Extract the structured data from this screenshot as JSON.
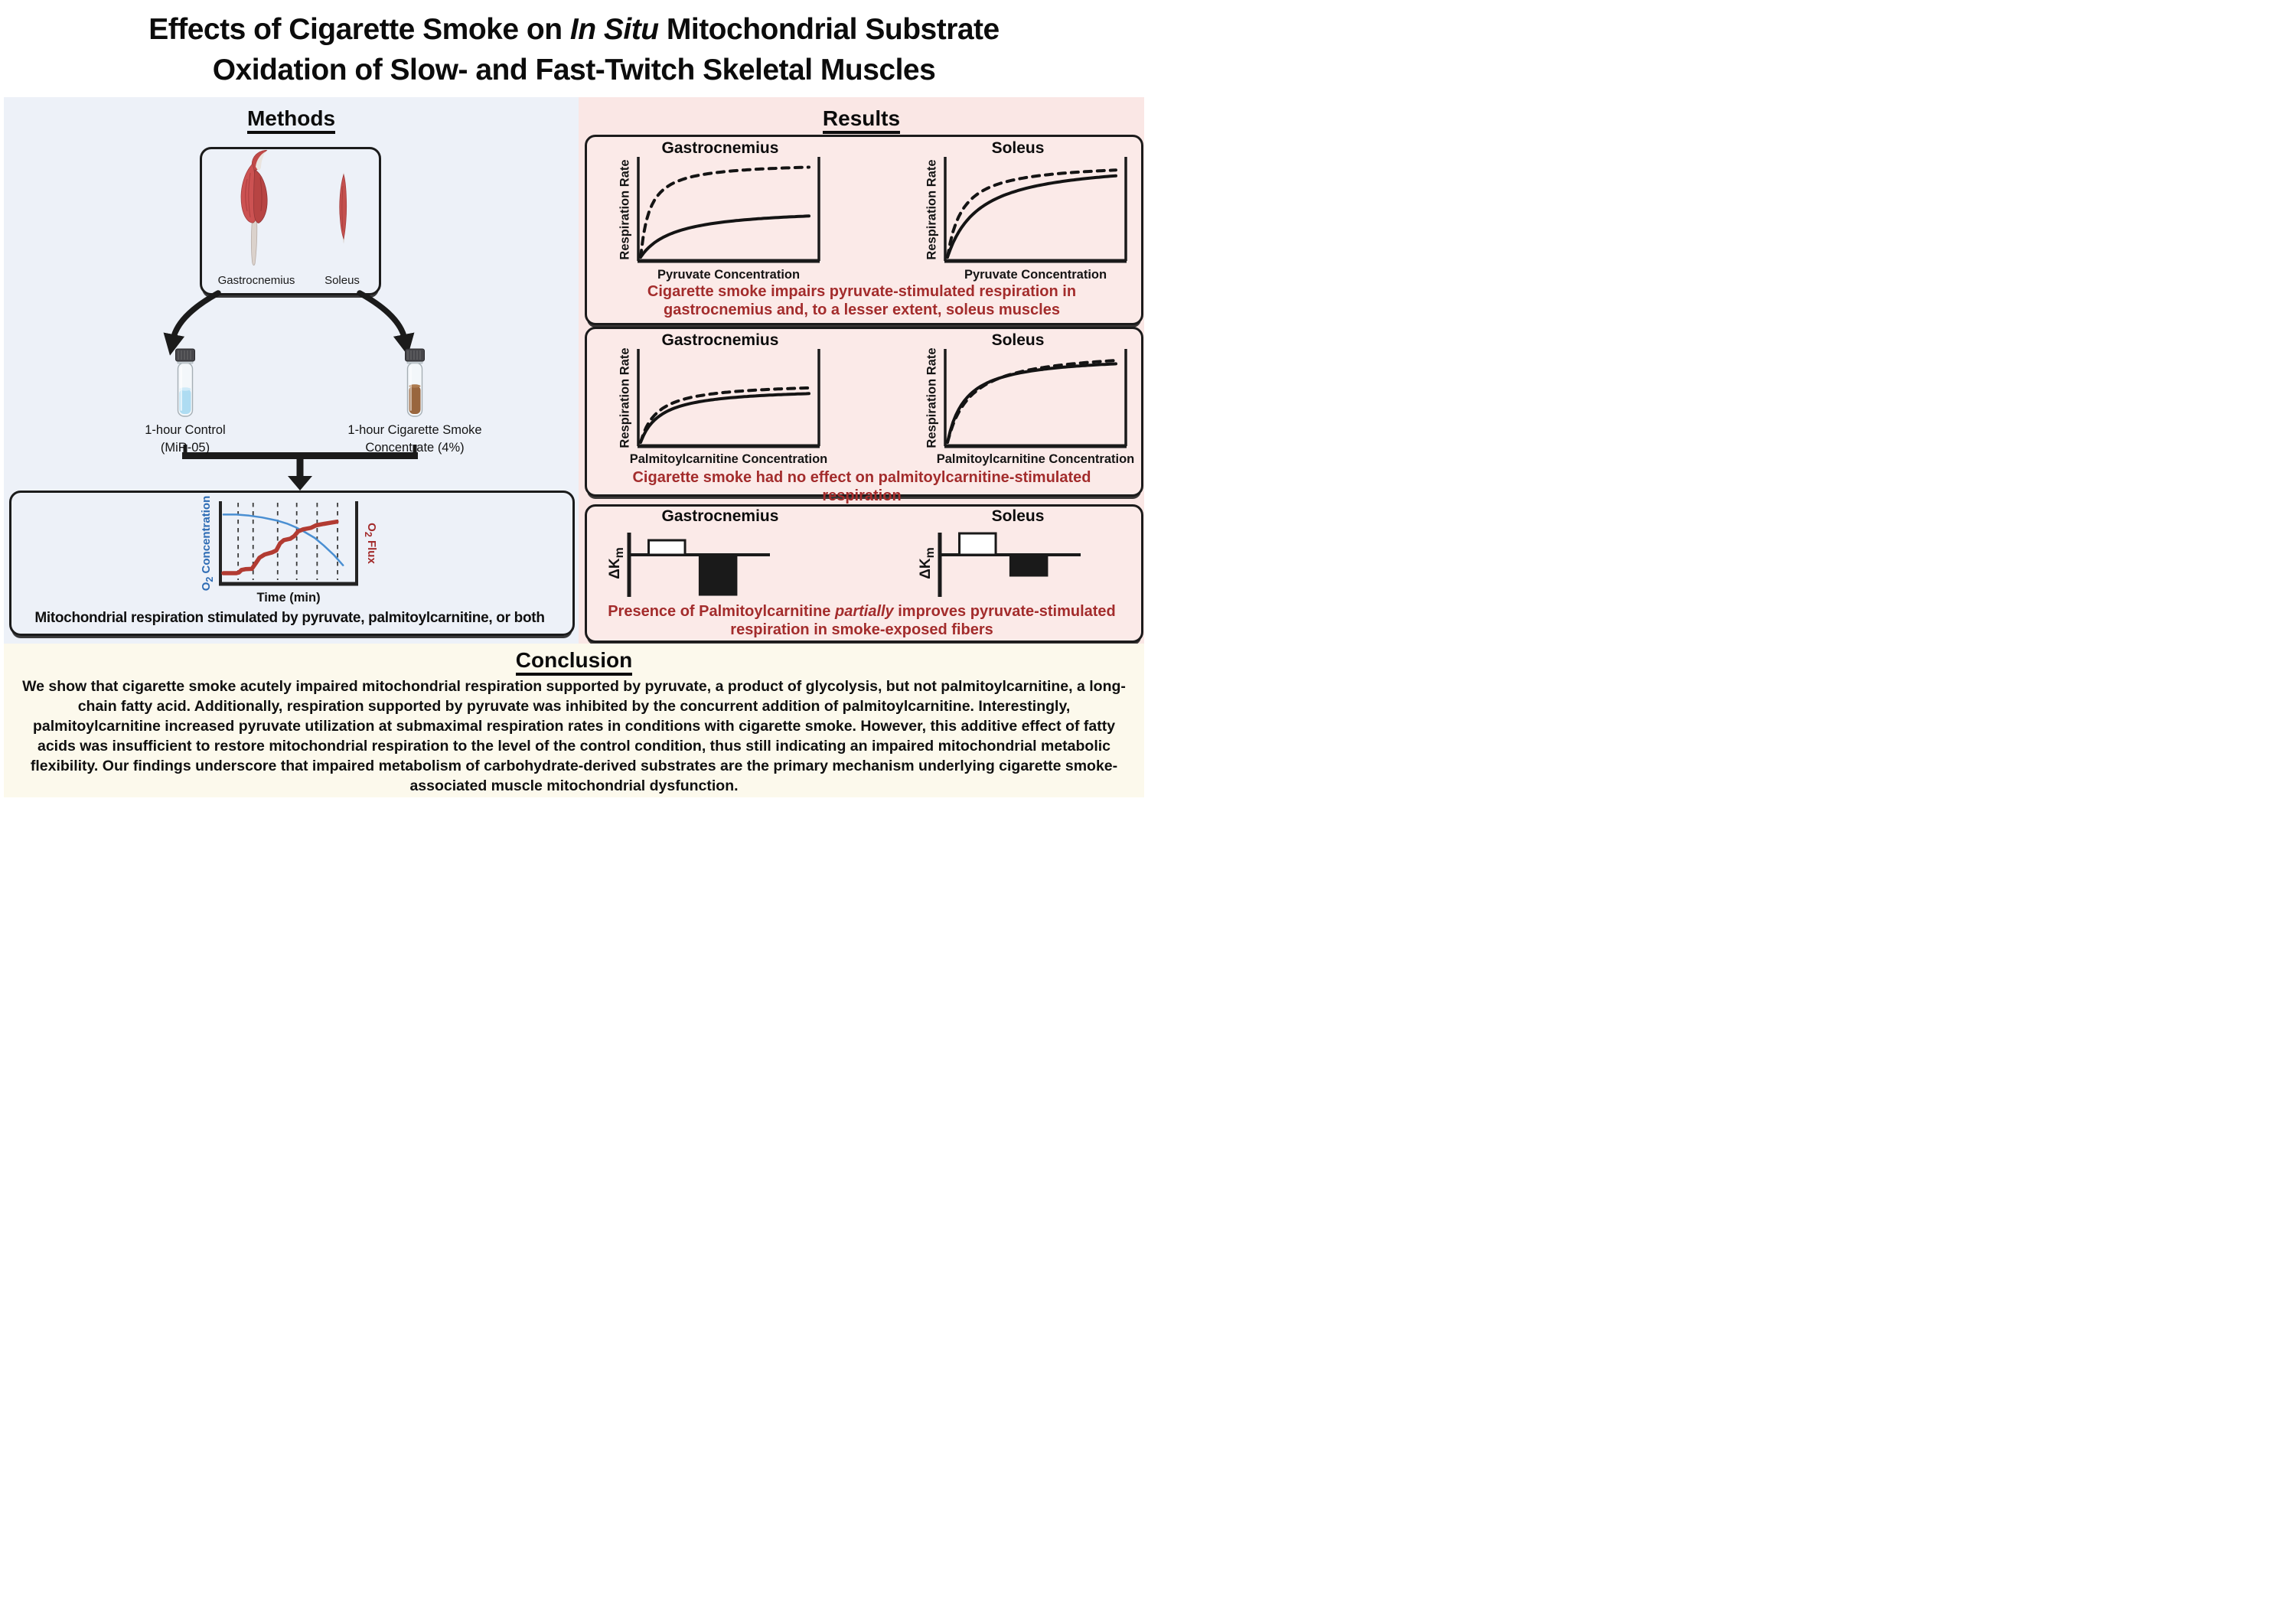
{
  "title": {
    "line1_pre": "Effects of Cigarette Smoke on ",
    "line1_italic": "In Situ",
    "line1_post": " Mitochondrial Substrate",
    "line2": "Oxidation of Slow- and Fast-Twitch Skeletal Muscles"
  },
  "methods": {
    "heading": "Methods",
    "muscle_labels": [
      "Gastrocnemius",
      "Soleus"
    ],
    "vials": [
      {
        "label_line1": "1-hour Control",
        "label_line2": "(MiR-05)",
        "liquid_color": "#AEDCF2"
      },
      {
        "label_line1": "1-hour Cigarette Smoke",
        "label_line2": "Concentrate (4%)",
        "liquid_color": "#99663E"
      }
    ],
    "caption": "Mitochondrial respiration stimulated by pyruvate, palmitoylcarnitine, or both"
  },
  "results": {
    "heading": "Results",
    "panels": [
      {
        "caption": "Cigarette smoke impairs pyruvate-stimulated respiration in gastrocnemius and, to a lesser extent, soleus muscles"
      },
      {
        "caption": "Cigarette smoke had no effect on palmitoylcarnitine-stimulated respiration"
      },
      {
        "caption_pre": "Presence of Palmitoylcarnitine ",
        "caption_italic": "partially",
        "caption_post": " improves pyruvate-stimulated respiration in smoke-exposed fibers"
      }
    ]
  },
  "conclusion": {
    "heading": "Conclusion",
    "text": "We show that cigarette smoke acutely impaired mitochondrial respiration supported by pyruvate, a product of glycolysis, but not palmitoylcarnitine, a long-chain fatty acid. Additionally, respiration supported by pyruvate was inhibited by the concurrent addition of palmitoylcarnitine. Interestingly, palmitoylcarnitine increased pyruvate utilization at submaximal respiration rates in conditions with cigarette smoke. However, this additive effect of fatty acids was insufficient to restore mitochondrial respiration to the level of the control condition, thus still indicating an impaired mitochondrial metabolic flexibility. Our findings underscore that impaired metabolism of carbohydrate-derived substrates are the primary mechanism underlying cigarette smoke-associated muscle mitochondrial dysfunction."
  },
  "colors": {
    "methods_bg": "#EDF1F8",
    "results_bg": "#FAE7E5",
    "panel_bg": "#FBEAE8",
    "conclusion_bg": "#FCF9EC",
    "caption_red": "#A32C2C",
    "ink": "#161616",
    "trace_blue": "#4A8FD2",
    "trace_blue_label": "#2E6CB4",
    "trace_red": "#B23B32",
    "control_liquid": "#AEDCF2",
    "smoke_liquid": "#99663E"
  },
  "chart_data": [
    {
      "type": "line",
      "id": "o2-trace",
      "xlabel": "Time (min)",
      "ylabel_left_parts": {
        "prefix": "O",
        "sub": "2",
        "suffix": " Concentration"
      },
      "ylabel_right_parts": {
        "prefix": "O",
        "sub": "2",
        "suffix": " Flux"
      },
      "grid": "vertical dashed lines only",
      "gridlines_x": [
        0.13,
        0.24,
        0.42,
        0.56,
        0.71,
        0.86
      ],
      "axis_ranges": "unlabeled qualitative axes, x and y normalized 0-1",
      "series": [
        {
          "name": "O2 Concentration",
          "color": "#4A8FD2",
          "width": 2.5,
          "points": [
            [
              0,
              0.9
            ],
            [
              0.1,
              0.9
            ],
            [
              0.2,
              0.885
            ],
            [
              0.3,
              0.86
            ],
            [
              0.42,
              0.815
            ],
            [
              0.5,
              0.77
            ],
            [
              0.56,
              0.725
            ],
            [
              0.63,
              0.66
            ],
            [
              0.71,
              0.575
            ],
            [
              0.78,
              0.47
            ],
            [
              0.86,
              0.335
            ],
            [
              0.93,
              0.195
            ]
          ]
        },
        {
          "name": "O2 Flux",
          "color": "#B23B32",
          "width": 5.5,
          "points": [
            [
              0,
              0.085
            ],
            [
              0.1,
              0.085
            ],
            [
              0.12,
              0.095
            ],
            [
              0.14,
              0.13
            ],
            [
              0.17,
              0.14
            ],
            [
              0.22,
              0.145
            ],
            [
              0.25,
              0.22
            ],
            [
              0.28,
              0.3
            ],
            [
              0.32,
              0.345
            ],
            [
              0.38,
              0.375
            ],
            [
              0.41,
              0.4
            ],
            [
              0.44,
              0.5
            ],
            [
              0.47,
              0.545
            ],
            [
              0.52,
              0.565
            ],
            [
              0.55,
              0.6
            ],
            [
              0.58,
              0.665
            ],
            [
              0.62,
              0.695
            ],
            [
              0.68,
              0.715
            ],
            [
              0.72,
              0.75
            ],
            [
              0.78,
              0.77
            ],
            [
              0.83,
              0.785
            ],
            [
              0.88,
              0.8
            ]
          ]
        }
      ]
    },
    {
      "type": "line",
      "subtype": "saturation curves",
      "title": "Gastrocnemius",
      "xlabel": "Pyruvate Concentration",
      "ylabel": "Respiration Rate",
      "axis_ranges": "unlabeled qualitative axes, normalized 0-1",
      "series": [
        {
          "name": "dashed curve (higher plateau)",
          "style": "dashed",
          "vmax_norm": 1.0,
          "km_norm": 0.055
        },
        {
          "name": "solid curve (lower plateau)",
          "style": "solid",
          "vmax_norm": 0.52,
          "km_norm": 0.2
        }
      ]
    },
    {
      "type": "line",
      "subtype": "saturation curves",
      "title": "Soleus",
      "xlabel": "Pyruvate Concentration",
      "ylabel": "Respiration Rate",
      "axis_ranges": "unlabeled qualitative axes, normalized 0-1",
      "series": [
        {
          "name": "dashed curve (higher plateau)",
          "style": "dashed",
          "vmax_norm": 1.0,
          "km_norm": 0.09
        },
        {
          "name": "solid curve (slightly lower plateau)",
          "style": "solid",
          "vmax_norm": 1.02,
          "km_norm": 0.19
        }
      ]
    },
    {
      "type": "line",
      "subtype": "saturation curves",
      "title": "Gastrocnemius",
      "xlabel": "Palmitoylcarnitine Concentration",
      "ylabel": "Respiration Rate",
      "axis_ranges": "unlabeled qualitative axes, normalized 0-1",
      "series": [
        {
          "name": "dashed curve",
          "style": "dashed",
          "vmax_norm": 0.68,
          "km_norm": 0.1
        },
        {
          "name": "solid curve (overlapping, slightly lower)",
          "style": "solid",
          "vmax_norm": 0.62,
          "km_norm": 0.12
        }
      ]
    },
    {
      "type": "line",
      "subtype": "saturation curves",
      "title": "Soleus",
      "xlabel": "Palmitoylcarnitine Concentration",
      "ylabel": "Respiration Rate",
      "axis_ranges": "unlabeled qualitative axes, normalized 0-1",
      "series": [
        {
          "name": "dashed curve",
          "style": "dashed",
          "vmax_norm": 1.06,
          "km_norm": 0.14
        },
        {
          "name": "solid curve (overlapping, slightly lower)",
          "style": "solid",
          "vmax_norm": 0.99,
          "km_norm": 0.11
        }
      ]
    },
    {
      "type": "bar",
      "title": "Gastrocnemius",
      "ylabel_parts": {
        "main": "ΔK",
        "sub": "m"
      },
      "axis_ranges": "unlabeled qualitative axis, values normalized to axis half-length",
      "bars": [
        {
          "name": "white bar (positive)",
          "fill": "#FFFFFF",
          "value": 0.38
        },
        {
          "name": "black bar (negative)",
          "fill": "#1A1A1A",
          "value": -1.04
        }
      ]
    },
    {
      "type": "bar",
      "title": "Soleus",
      "ylabel_parts": {
        "main": "ΔK",
        "sub": "m"
      },
      "axis_ranges": "unlabeled qualitative axis, values normalized to axis half-length",
      "bars": [
        {
          "name": "white bar (positive)",
          "fill": "#FFFFFF",
          "value": 0.56
        },
        {
          "name": "black bar (negative)",
          "fill": "#1A1A1A",
          "value": -0.54
        }
      ]
    }
  ]
}
